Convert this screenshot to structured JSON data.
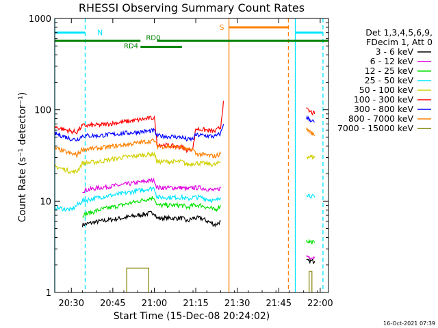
{
  "chart_data": {
    "type": "line",
    "title": "RHESSI Observing Summary Count Rates",
    "xlabel": "Start Time (15-Dec-08 20:24:02)",
    "ylabel": "Count Rate (s⁻¹ detector⁻¹)",
    "y_scale": "log",
    "ylim": [
      1,
      1000
    ],
    "xlim_minutes": [
      0,
      99
    ],
    "x_ticks": [
      {
        "label": "20:30",
        "minutes": 6
      },
      {
        "label": "20:45",
        "minutes": 21
      },
      {
        "label": "21:00",
        "minutes": 36
      },
      {
        "label": "21:15",
        "minutes": 51
      },
      {
        "label": "21:30",
        "minutes": 66
      },
      {
        "label": "21:45",
        "minutes": 81
      },
      {
        "label": "22:00",
        "minutes": 96
      }
    ],
    "y_ticks": [
      {
        "label": "1",
        "value": 1
      },
      {
        "label": "10",
        "value": 10
      },
      {
        "label": "100",
        "value": 100
      },
      {
        "label": "1000",
        "value": 1000
      }
    ],
    "legend_header": [
      "Det 1,3,4,5,6,9,",
      "FDecim 1, Att 0"
    ],
    "legend_placement": "right, outside plot",
    "series": [
      {
        "name": "3 - 6 keV",
        "color": "#000000",
        "segments": [
          [
            [
              10,
              5.5
            ],
            [
              16,
              6
            ],
            [
              24,
              6.5
            ],
            [
              36,
              7.5
            ],
            [
              37,
              6.5
            ],
            [
              46,
              6.5
            ],
            [
              48,
              6
            ],
            [
              50,
              6.5
            ],
            [
              53,
              6.5
            ],
            [
              58,
              5.5
            ],
            [
              60,
              6
            ]
          ],
          [
            [
              91,
              2.2
            ],
            [
              94,
              2.2
            ]
          ]
        ]
      },
      {
        "name": "6 - 12 keV",
        "color": "#e000e0",
        "segments": [
          [
            [
              10,
              13
            ],
            [
              16,
              14
            ],
            [
              24,
              15
            ],
            [
              36,
              17
            ],
            [
              37,
              14
            ],
            [
              46,
              14
            ],
            [
              48,
              13.5
            ],
            [
              50,
              14
            ],
            [
              53,
              14
            ],
            [
              58,
              13
            ],
            [
              60,
              14
            ]
          ],
          [
            [
              91,
              2.5
            ],
            [
              94,
              2.4
            ]
          ]
        ]
      },
      {
        "name": "12 - 25 keV",
        "color": "#00e000",
        "segments": [
          [
            [
              10,
              7
            ],
            [
              16,
              8
            ],
            [
              24,
              9
            ],
            [
              36,
              11
            ],
            [
              37,
              9
            ],
            [
              46,
              9
            ],
            [
              48,
              8.5
            ],
            [
              50,
              9
            ],
            [
              53,
              9
            ],
            [
              58,
              8
            ],
            [
              60,
              9
            ]
          ],
          [
            [
              91,
              3.7
            ],
            [
              94,
              3.5
            ]
          ]
        ]
      },
      {
        "name": "25 - 50 keV",
        "color": "#00e5ff",
        "segments": [
          [
            [
              0,
              8.5
            ],
            [
              6,
              8
            ],
            [
              7,
              8.5
            ],
            [
              10,
              10
            ],
            [
              16,
              11
            ],
            [
              24,
              12
            ],
            [
              36,
              14
            ],
            [
              37,
              11
            ],
            [
              46,
              11
            ],
            [
              48,
              10.5
            ],
            [
              50,
              11
            ],
            [
              53,
              11
            ],
            [
              58,
              10
            ],
            [
              60,
              11
            ]
          ],
          [
            [
              91,
              12
            ],
            [
              94,
              11
            ]
          ]
        ]
      },
      {
        "name": "50 - 100 keV",
        "color": "#d0d000",
        "segments": [
          [
            [
              0,
              24
            ],
            [
              6,
              21
            ],
            [
              8,
              21
            ],
            [
              10,
              26
            ],
            [
              16,
              27
            ],
            [
              24,
              30
            ],
            [
              36,
              33
            ],
            [
              37,
              27
            ],
            [
              46,
              27
            ],
            [
              48,
              25
            ],
            [
              50,
              26
            ],
            [
              53,
              26
            ],
            [
              58,
              25
            ],
            [
              60,
              27
            ]
          ],
          [
            [
              91,
              31
            ],
            [
              94,
              30
            ]
          ]
        ]
      },
      {
        "name": "100 - 300 keV",
        "color": "#ff0000",
        "segments": [
          [
            [
              0,
              65
            ],
            [
              6,
              58
            ],
            [
              8,
              57
            ],
            [
              10,
              67
            ],
            [
              16,
              68
            ],
            [
              24,
              73
            ],
            [
              36,
              82
            ],
            [
              37,
              42
            ],
            [
              46,
              39
            ],
            [
              48,
              36
            ],
            [
              50,
              38
            ],
            [
              51,
              62
            ],
            [
              58,
              58
            ],
            [
              60,
              65
            ],
            [
              61,
              125
            ]
          ],
          [
            [
              91,
              100
            ],
            [
              94,
              90
            ]
          ]
        ]
      },
      {
        "name": "300 - 800 keV",
        "color": "#0000ff",
        "segments": [
          [
            [
              0,
              55
            ],
            [
              6,
              48
            ],
            [
              8,
              47
            ],
            [
              10,
              52
            ],
            [
              16,
              52
            ],
            [
              24,
              55
            ],
            [
              36,
              59
            ],
            [
              37,
              52
            ],
            [
              46,
              50
            ],
            [
              48,
              47
            ],
            [
              50,
              48
            ],
            [
              51,
              53
            ],
            [
              58,
              51
            ],
            [
              60,
              55
            ],
            [
              61,
              70
            ]
          ],
          [
            [
              91,
              82
            ],
            [
              94,
              73
            ]
          ]
        ]
      },
      {
        "name": "800 - 7000 keV",
        "color": "#ff8000",
        "segments": [
          [
            [
              0,
              38
            ],
            [
              6,
              33
            ],
            [
              8,
              32
            ],
            [
              10,
              37
            ],
            [
              16,
              38
            ],
            [
              24,
              41
            ],
            [
              36,
              46
            ],
            [
              37,
              40
            ],
            [
              46,
              39
            ],
            [
              48,
              36
            ],
            [
              50,
              37
            ],
            [
              51,
              33
            ],
            [
              58,
              31
            ],
            [
              60,
              33
            ]
          ],
          [
            [
              91,
              62
            ],
            [
              94,
              52
            ]
          ]
        ]
      },
      {
        "name": "7000 - 15000 keV",
        "color": "#808000",
        "segments": [
          [
            [
              26,
              1
            ],
            [
              26,
              1.85
            ],
            [
              34,
              1.85
            ],
            [
              34,
              1
            ]
          ],
          [
            [
              92,
              1
            ],
            [
              92,
              1.7
            ],
            [
              93,
              1.7
            ],
            [
              93,
              1
            ]
          ]
        ]
      }
    ],
    "annotations": {
      "night": {
        "label": "N",
        "color": "#00e5ff",
        "bars": [
          [
            0,
            11
          ],
          [
            87,
            97
          ]
        ],
        "value": 700,
        "lines": [
          {
            "minutes": 0,
            "style": "solid"
          },
          {
            "minutes": 11,
            "style": "dashed"
          },
          {
            "minutes": 87,
            "style": "solid"
          },
          {
            "minutes": 97,
            "style": "dashed"
          }
        ]
      },
      "saa": {
        "label": "S",
        "color": "#ff8000",
        "bars": [
          [
            63,
            84.5
          ]
        ],
        "value": 800,
        "lines": [
          {
            "minutes": 63,
            "style": "solid"
          },
          {
            "minutes": 84.5,
            "style": "dashed"
          }
        ]
      },
      "attenuator": {
        "color": "#008000",
        "value": 570,
        "bars": [
          [
            0,
            31
          ],
          [
            37,
            99
          ]
        ],
        "labels": [
          {
            "text": "RD0",
            "minutes": 33
          },
          {
            "text": "RD4",
            "minutes": 25
          }
        ],
        "rd4_bar": [
          31,
          46
        ]
      }
    },
    "grid": false
  },
  "footer": {
    "timestamp": "16-Oct-2021 07:39"
  }
}
